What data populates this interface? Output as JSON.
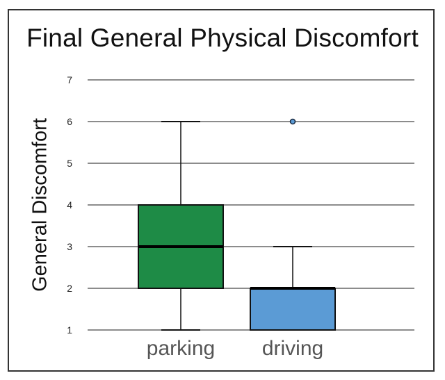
{
  "chart_data": {
    "type": "box",
    "title": "Final General Physical Discomfort",
    "ylabel": "General Discomfort",
    "xlabel": "",
    "ylim": [
      1,
      7
    ],
    "yticks": [
      1,
      2,
      3,
      4,
      5,
      6,
      7
    ],
    "grid": true,
    "categories": [
      "parking",
      "driving"
    ],
    "boxes": [
      {
        "category": "parking",
        "min": 1,
        "q1": 2,
        "median": 3,
        "q3": 4,
        "max": 6,
        "outliers": [],
        "color": "#1e8b46"
      },
      {
        "category": "driving",
        "min": 1,
        "q1": 1,
        "median": 2,
        "q3": 2,
        "max": 3,
        "outliers": [
          6
        ],
        "color": "#5b9bd5"
      }
    ]
  }
}
